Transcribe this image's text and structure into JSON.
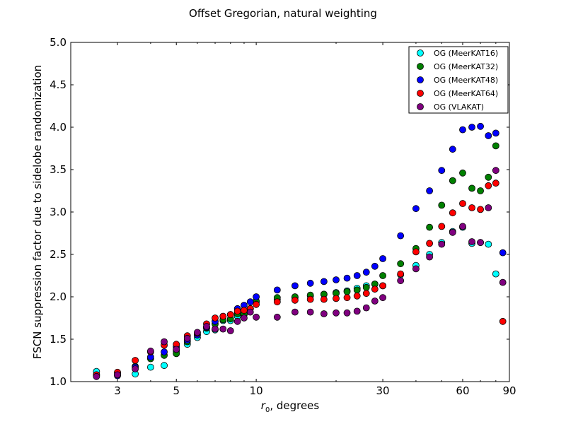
{
  "chart_data": {
    "type": "scatter",
    "title": "Offset Gregorian, natural weighting",
    "xlabel_var": "r",
    "xlabel_sub": "0",
    "xlabel_rest": ", degrees",
    "ylabel": "FSCN suppression factor due to sidelobe randomization",
    "x_scale": "log",
    "xlim": [
      2,
      90
    ],
    "ylim": [
      1.0,
      5.0
    ],
    "xticks": [
      3,
      5,
      10,
      30,
      60,
      90
    ],
    "xtick_labels": [
      "3",
      "5",
      "10",
      "30",
      "60",
      "90"
    ],
    "yticks": [
      1.0,
      1.5,
      2.0,
      2.5,
      3.0,
      3.5,
      4.0,
      4.5,
      5.0
    ],
    "ytick_labels": [
      "1.0",
      "1.5",
      "2.0",
      "2.5",
      "3.0",
      "3.5",
      "4.0",
      "4.5",
      "5.0"
    ],
    "grid": false,
    "legend_position": "top-right",
    "series": [
      {
        "name": "OG (MeerKAT16)",
        "color": "#00ffff",
        "x": [
          2.5,
          3.0,
          3.5,
          4.0,
          4.5,
          5.0,
          5.5,
          6.0,
          6.5,
          7.0,
          7.5,
          8.0,
          8.5,
          9.0,
          9.5,
          10.0,
          12.0,
          14.0,
          16.0,
          18.0,
          20.0,
          22.0,
          24.0,
          26.0,
          28.0,
          30.0,
          35.0,
          40.0,
          45.0,
          50.0,
          55.0,
          60.0,
          65.0,
          70.0,
          75.0,
          80.0
        ],
        "y": [
          1.12,
          1.1,
          1.09,
          1.17,
          1.19,
          1.36,
          1.44,
          1.52,
          1.59,
          1.61,
          1.72,
          1.72,
          1.77,
          1.79,
          1.86,
          1.94,
          1.97,
          1.99,
          2.01,
          2.03,
          2.05,
          2.07,
          2.1,
          2.13,
          2.15,
          2.13,
          2.26,
          2.37,
          2.5,
          2.64,
          2.77,
          2.82,
          2.63,
          2.64,
          2.62,
          2.27
        ]
      },
      {
        "name": "OG (MeerKAT32)",
        "color": "#008000",
        "x": [
          2.5,
          3.0,
          3.5,
          4.0,
          4.5,
          5.0,
          5.5,
          6.0,
          6.5,
          7.0,
          7.5,
          8.0,
          8.5,
          9.0,
          9.5,
          10.0,
          12.0,
          14.0,
          16.0,
          18.0,
          20.0,
          22.0,
          24.0,
          26.0,
          28.0,
          30.0,
          35.0,
          40.0,
          45.0,
          50.0,
          55.0,
          60.0,
          65.0,
          70.0,
          75.0,
          80.0
        ],
        "y": [
          1.08,
          1.08,
          1.18,
          1.27,
          1.31,
          1.33,
          1.47,
          1.55,
          1.63,
          1.68,
          1.73,
          1.74,
          1.8,
          1.8,
          1.86,
          1.95,
          1.99,
          2.0,
          2.02,
          2.03,
          2.04,
          2.06,
          2.08,
          2.11,
          2.15,
          2.25,
          2.39,
          2.57,
          2.82,
          3.08,
          3.37,
          3.46,
          3.28,
          3.25,
          3.41,
          3.78
        ]
      },
      {
        "name": "OG (MeerKAT48)",
        "color": "#0000ff",
        "x": [
          2.5,
          3.0,
          3.5,
          4.0,
          4.5,
          5.0,
          5.5,
          6.0,
          6.5,
          7.0,
          7.5,
          8.0,
          8.5,
          9.0,
          9.5,
          10.0,
          12.0,
          14.0,
          16.0,
          18.0,
          20.0,
          22.0,
          24.0,
          26.0,
          28.0,
          30.0,
          35.0,
          40.0,
          45.0,
          50.0,
          55.0,
          60.0,
          65.0,
          70.0,
          75.0,
          80.0,
          85.0
        ],
        "y": [
          1.07,
          1.07,
          1.17,
          1.29,
          1.35,
          1.41,
          1.49,
          1.55,
          1.64,
          1.71,
          1.77,
          1.79,
          1.86,
          1.9,
          1.94,
          2.0,
          2.08,
          2.13,
          2.16,
          2.18,
          2.2,
          2.22,
          2.25,
          2.29,
          2.36,
          2.45,
          2.72,
          3.04,
          3.25,
          3.49,
          3.74,
          3.97,
          4.0,
          4.01,
          3.9,
          3.93,
          2.52
        ]
      },
      {
        "name": "OG (MeerKAT64)",
        "color": "#ff0000",
        "x": [
          2.5,
          3.0,
          3.5,
          4.0,
          4.5,
          5.0,
          5.5,
          6.0,
          6.5,
          7.0,
          7.5,
          8.0,
          8.5,
          9.0,
          9.5,
          10.0,
          12.0,
          14.0,
          16.0,
          18.0,
          20.0,
          22.0,
          24.0,
          26.0,
          28.0,
          30.0,
          35.0,
          40.0,
          45.0,
          50.0,
          55.0,
          60.0,
          65.0,
          70.0,
          75.0,
          80.0,
          85.0
        ],
        "y": [
          1.08,
          1.11,
          1.25,
          1.35,
          1.43,
          1.44,
          1.54,
          1.57,
          1.68,
          1.75,
          1.77,
          1.79,
          1.83,
          1.84,
          1.86,
          1.91,
          1.94,
          1.96,
          1.97,
          1.97,
          1.98,
          1.99,
          2.01,
          2.04,
          2.09,
          2.13,
          2.27,
          2.53,
          2.63,
          2.83,
          2.99,
          3.1,
          3.05,
          3.03,
          3.31,
          3.34,
          1.71
        ]
      },
      {
        "name": "OG (VLAKAT)",
        "color": "#800080",
        "x": [
          2.5,
          3.0,
          3.5,
          4.0,
          4.5,
          5.0,
          5.5,
          6.0,
          6.5,
          7.0,
          7.5,
          8.0,
          8.5,
          9.0,
          9.5,
          10.0,
          12.0,
          14.0,
          16.0,
          18.0,
          20.0,
          22.0,
          24.0,
          26.0,
          28.0,
          30.0,
          35.0,
          40.0,
          45.0,
          50.0,
          55.0,
          60.0,
          65.0,
          70.0,
          75.0,
          80.0,
          85.0
        ],
        "y": [
          1.06,
          1.08,
          1.15,
          1.36,
          1.47,
          1.38,
          1.51,
          1.58,
          1.65,
          1.62,
          1.62,
          1.6,
          1.71,
          1.75,
          1.82,
          1.76,
          1.76,
          1.82,
          1.82,
          1.8,
          1.81,
          1.81,
          1.83,
          1.87,
          1.95,
          1.99,
          2.19,
          2.33,
          2.47,
          2.62,
          2.76,
          2.83,
          2.65,
          2.64,
          3.05,
          3.49,
          2.17
        ]
      }
    ]
  }
}
